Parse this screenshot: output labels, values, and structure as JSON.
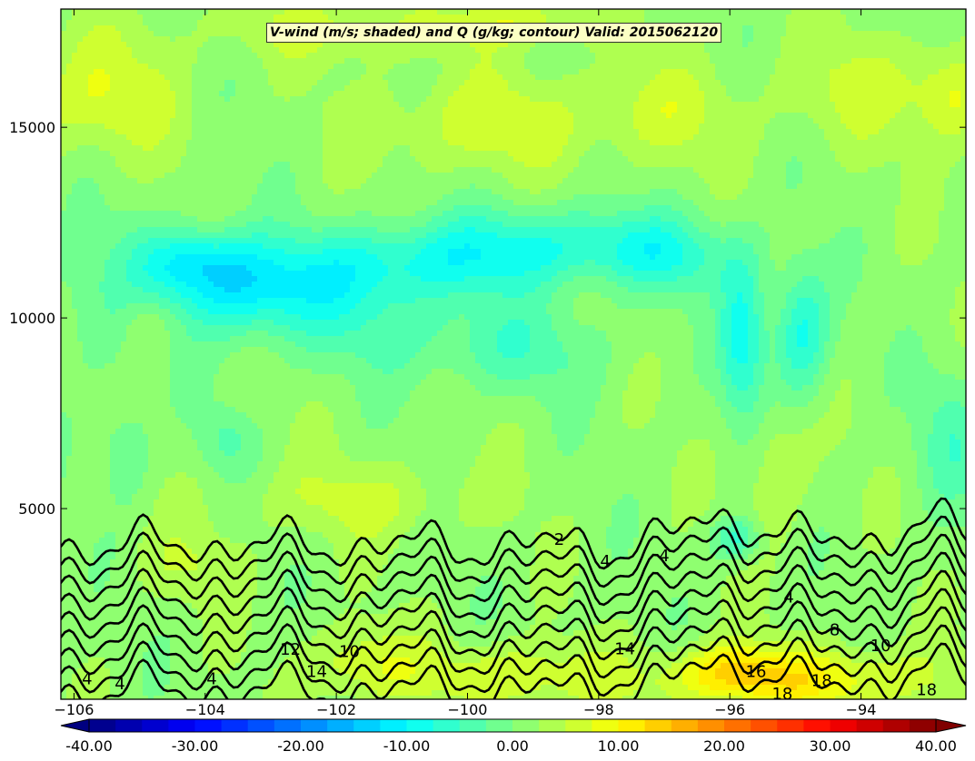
{
  "chart_data": {
    "type": "heatmap",
    "title": "V-wind (m/s; shaded) and Q (g/kg; contour) Valid: 2015062120",
    "xlabel": "",
    "ylabel": "",
    "xlim": [
      -106.2,
      -92.4
    ],
    "ylim": [
      0,
      18100
    ],
    "x_ticks": [
      -106,
      -104,
      -102,
      -100,
      -98,
      -96,
      -94
    ],
    "x_tick_labels": [
      "−106",
      "−104",
      "−102",
      "−100",
      "−98",
      "−96",
      "−94"
    ],
    "y_ticks": [
      5000,
      10000,
      15000
    ],
    "y_tick_labels": [
      "5000",
      "10000",
      "15000"
    ],
    "colorbar": {
      "min": -40,
      "max": 40,
      "step": 2.5,
      "extend": "both",
      "orientation": "horizontal",
      "ticks": [
        -40,
        -30,
        -20,
        -10,
        0,
        10,
        20,
        30,
        40
      ],
      "tick_labels": [
        "-40.00",
        "-30.00",
        "-20.00",
        "-10.00",
        "0.00",
        "10.00",
        "20.00",
        "30.00",
        "40.00"
      ]
    },
    "colormap": "jet",
    "shaded_field": {
      "name": "V-wind (m/s)",
      "background": 1.5,
      "features": [
        {
          "x": -103.6,
          "y": 11000,
          "sx": 0.7,
          "sy": 900,
          "a": -9
        },
        {
          "x": -102.5,
          "y": 10700,
          "sx": 1.1,
          "sy": 900,
          "a": -7
        },
        {
          "x": -101.0,
          "y": 11500,
          "sx": 1.1,
          "sy": 700,
          "a": -7
        },
        {
          "x": -99.5,
          "y": 11800,
          "sx": 0.9,
          "sy": 800,
          "a": -6
        },
        {
          "x": -97.8,
          "y": 11900,
          "sx": 1.0,
          "sy": 700,
          "a": -7
        },
        {
          "x": -96.8,
          "y": 11500,
          "sx": 0.7,
          "sy": 700,
          "a": -5
        },
        {
          "x": -104.3,
          "y": 11500,
          "sx": 0.5,
          "sy": 600,
          "a": -7
        },
        {
          "x": -100.5,
          "y": 9500,
          "sx": 1.5,
          "sy": 900,
          "a": -4
        },
        {
          "x": -99.0,
          "y": 9000,
          "sx": 0.8,
          "sy": 800,
          "a": -3
        },
        {
          "x": -95.8,
          "y": 9500,
          "sx": 0.25,
          "sy": 1500,
          "a": -10
        },
        {
          "x": -94.9,
          "y": 9600,
          "sx": 0.3,
          "sy": 1200,
          "a": -10
        },
        {
          "x": -95.9,
          "y": 4200,
          "sx": 0.25,
          "sy": 400,
          "a": -8
        },
        {
          "x": -105.6,
          "y": 10500,
          "sx": 0.7,
          "sy": 1500,
          "a": -4
        },
        {
          "x": -105.2,
          "y": 6500,
          "sx": 0.25,
          "sy": 800,
          "a": -5
        },
        {
          "x": -103.7,
          "y": 6800,
          "sx": 0.3,
          "sy": 600,
          "a": -4
        },
        {
          "x": -92.6,
          "y": 6800,
          "sx": 0.4,
          "sy": 1300,
          "a": -5
        },
        {
          "x": -105.6,
          "y": 15800,
          "sx": 0.8,
          "sy": 1100,
          "a": 6
        },
        {
          "x": -99.7,
          "y": 15100,
          "sx": 1.2,
          "sy": 900,
          "a": 5
        },
        {
          "x": -97.0,
          "y": 15400,
          "sx": 0.8,
          "sy": 900,
          "a": 4
        },
        {
          "x": -94.0,
          "y": 16000,
          "sx": 0.9,
          "sy": 1000,
          "a": 4
        },
        {
          "x": -92.6,
          "y": 15800,
          "sx": 0.4,
          "sy": 900,
          "a": 6
        },
        {
          "x": -101.8,
          "y": 17600,
          "sx": 1.5,
          "sy": 600,
          "a": 4
        },
        {
          "x": -99.0,
          "y": 17800,
          "sx": 0.7,
          "sy": 400,
          "a": 5
        },
        {
          "x": -104.9,
          "y": 9800,
          "sx": 0.3,
          "sy": 600,
          "a": 4
        },
        {
          "x": -95.3,
          "y": 6000,
          "sx": 0.35,
          "sy": 1300,
          "a": 4
        },
        {
          "x": -95.0,
          "y": 500,
          "sx": 1.5,
          "sy": 600,
          "a": 9
        },
        {
          "x": -96.0,
          "y": 800,
          "sx": 0.5,
          "sy": 500,
          "a": 6
        },
        {
          "x": -101.6,
          "y": 900,
          "sx": 0.6,
          "sy": 700,
          "a": 6
        },
        {
          "x": -99.3,
          "y": 600,
          "sx": 1.0,
          "sy": 600,
          "a": 6
        },
        {
          "x": -101.6,
          "y": 5200,
          "sx": 1.2,
          "sy": 700,
          "a": 4
        },
        {
          "x": -104.2,
          "y": 3500,
          "sx": 0.6,
          "sy": 700,
          "a": 3
        }
      ]
    },
    "contour_field": {
      "name": "Q (g/kg)",
      "levels": [
        2,
        4,
        6,
        8,
        10,
        12,
        14,
        16,
        18
      ],
      "contour_labels": [
        {
          "text": "2",
          "x": -98.6,
          "y": 4170
        },
        {
          "text": "4",
          "x": -97.0,
          "y": 3740
        },
        {
          "text": "4",
          "x": -97.9,
          "y": 3600
        },
        {
          "text": "4",
          "x": -95.1,
          "y": 2650
        },
        {
          "text": "8",
          "x": -94.4,
          "y": 1800
        },
        {
          "text": "10",
          "x": -93.7,
          "y": 1380
        },
        {
          "text": "10",
          "x": -101.8,
          "y": 1230
        },
        {
          "text": "12",
          "x": -102.7,
          "y": 1290
        },
        {
          "text": "14",
          "x": -102.3,
          "y": 700
        },
        {
          "text": "14",
          "x": -97.6,
          "y": 1300
        },
        {
          "text": "16",
          "x": -95.6,
          "y": 700
        },
        {
          "text": "18",
          "x": -94.6,
          "y": 470
        },
        {
          "text": "18",
          "x": -95.2,
          "y": 120
        },
        {
          "text": "18",
          "x": -93.0,
          "y": 230
        },
        {
          "text": "4",
          "x": -105.8,
          "y": 510
        },
        {
          "text": "4",
          "x": -105.3,
          "y": 380
        },
        {
          "text": "4",
          "x": -103.9,
          "y": 510
        }
      ]
    }
  }
}
